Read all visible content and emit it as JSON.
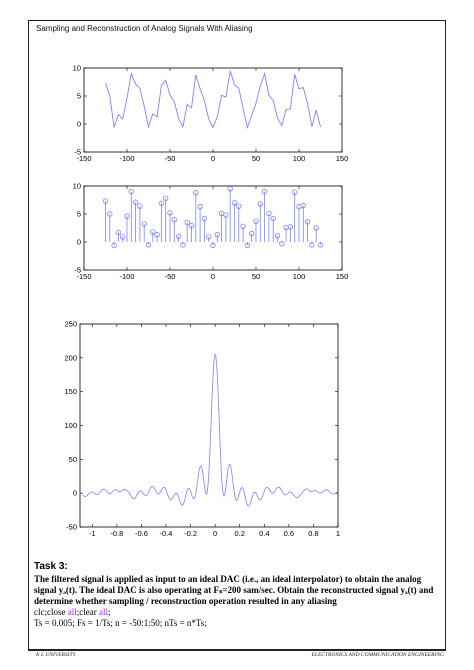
{
  "header": {
    "title": "Sampling and Reconstruction of Analog Signals With Aliasing"
  },
  "chart_data": [
    {
      "type": "line",
      "x": [
        -125,
        -120,
        -115,
        -110,
        -105,
        -100,
        -95,
        -90,
        -85,
        -80,
        -75,
        -70,
        -65,
        -60,
        -55,
        -50,
        -45,
        -40,
        -35,
        -30,
        -25,
        -20,
        -15,
        -10,
        -5,
        0,
        5,
        10,
        15,
        20,
        25,
        30,
        35,
        40,
        45,
        50,
        55,
        60,
        65,
        70,
        75,
        80,
        85,
        90,
        95,
        100,
        105,
        110,
        115,
        120,
        125
      ],
      "values": [
        7.3,
        5.0,
        -0.6,
        1.7,
        0.9,
        4.6,
        9.0,
        7.1,
        6.4,
        3.2,
        -0.5,
        1.8,
        1.3,
        6.9,
        7.8,
        5.2,
        4.0,
        1.0,
        -0.5,
        3.5,
        2.9,
        8.8,
        6.3,
        4.2,
        0.9,
        -0.6,
        1.3,
        5.1,
        4.8,
        9.5,
        7.0,
        6.4,
        2.8,
        -0.6,
        1.5,
        3.7,
        6.8,
        9.0,
        5.1,
        4.2,
        1.1,
        -0.3,
        2.6,
        2.7,
        8.9,
        6.3,
        6.5,
        3.6,
        -0.5,
        2.5,
        -0.5
      ],
      "xlim": [
        -150,
        150
      ],
      "ylim": [
        -5,
        10
      ],
      "xticks": [
        "-150",
        "-100",
        "-50",
        "0",
        "50",
        "100",
        "150"
      ],
      "yticks": [
        "-5",
        "0",
        "5",
        "10"
      ],
      "color": "#8080ff"
    },
    {
      "type": "stem",
      "x": [
        -125,
        -120,
        -115,
        -110,
        -105,
        -100,
        -95,
        -90,
        -85,
        -80,
        -75,
        -70,
        -65,
        -60,
        -55,
        -50,
        -45,
        -40,
        -35,
        -30,
        -25,
        -20,
        -15,
        -10,
        -5,
        0,
        5,
        10,
        15,
        20,
        25,
        30,
        35,
        40,
        45,
        50,
        55,
        60,
        65,
        70,
        75,
        80,
        85,
        90,
        95,
        100,
        105,
        110,
        115,
        120,
        125
      ],
      "values": [
        7.3,
        5.0,
        -0.6,
        1.7,
        0.9,
        4.6,
        9.0,
        7.1,
        6.4,
        3.2,
        -0.5,
        1.8,
        1.3,
        6.9,
        7.8,
        5.2,
        4.0,
        1.0,
        -0.5,
        3.5,
        2.9,
        8.8,
        6.3,
        4.2,
        0.9,
        -0.6,
        1.3,
        5.1,
        4.8,
        9.5,
        7.0,
        6.4,
        2.8,
        -0.6,
        1.5,
        3.7,
        6.8,
        9.0,
        5.1,
        4.2,
        1.1,
        -0.3,
        2.6,
        2.7,
        8.9,
        6.3,
        6.5,
        3.6,
        -0.5,
        2.5,
        -0.5
      ],
      "xlim": [
        -150,
        150
      ],
      "ylim": [
        -5,
        10
      ],
      "xticks": [
        "-150",
        "-100",
        "-50",
        "0",
        "50",
        "100",
        "150"
      ],
      "yticks": [
        "-5",
        "0",
        "5",
        "10"
      ],
      "color": "#8080ff"
    },
    {
      "type": "line",
      "function": "sinc-like",
      "xlim": [
        -1.1,
        1.0
      ],
      "ylim": [
        -50,
        250
      ],
      "peak": {
        "x": 0,
        "y": 205
      },
      "xticks": [
        "-1",
        "-0.8",
        "-0.6",
        "-0.4",
        "-0.2",
        "0",
        "0.2",
        "0.4",
        "0.6",
        "0.8",
        "1"
      ],
      "yticks": [
        "-50",
        "0",
        "50",
        "100",
        "150",
        "200",
        "250"
      ],
      "color": "#8080ff"
    }
  ],
  "task": {
    "heading": "Task 3:",
    "description": "The filtered signal is applied as input to an ideal DAC (i.e., an ideal interpolator) to obtain the analog signal yₐ(t). The ideal DAC is also operating at Fₛ=200 sam/sec. Obtain the reconstructed signal yₐ(t) and determine whether sampling / reconstruction operation resulted in any aliasing",
    "code1_a": "clc;close ",
    "code1_b": "all",
    "code1_c": ";clear ",
    "code1_d": "all",
    "code1_e": ";",
    "code2": "Ts = 0.005; Fs = 1/Ts; n = -50:1:50; nTs = n*Ts;"
  },
  "footer": {
    "left": "K L UNIVERSITY",
    "right": "ELECTRONICS AND COMMUNICATION ENGINEERING"
  }
}
